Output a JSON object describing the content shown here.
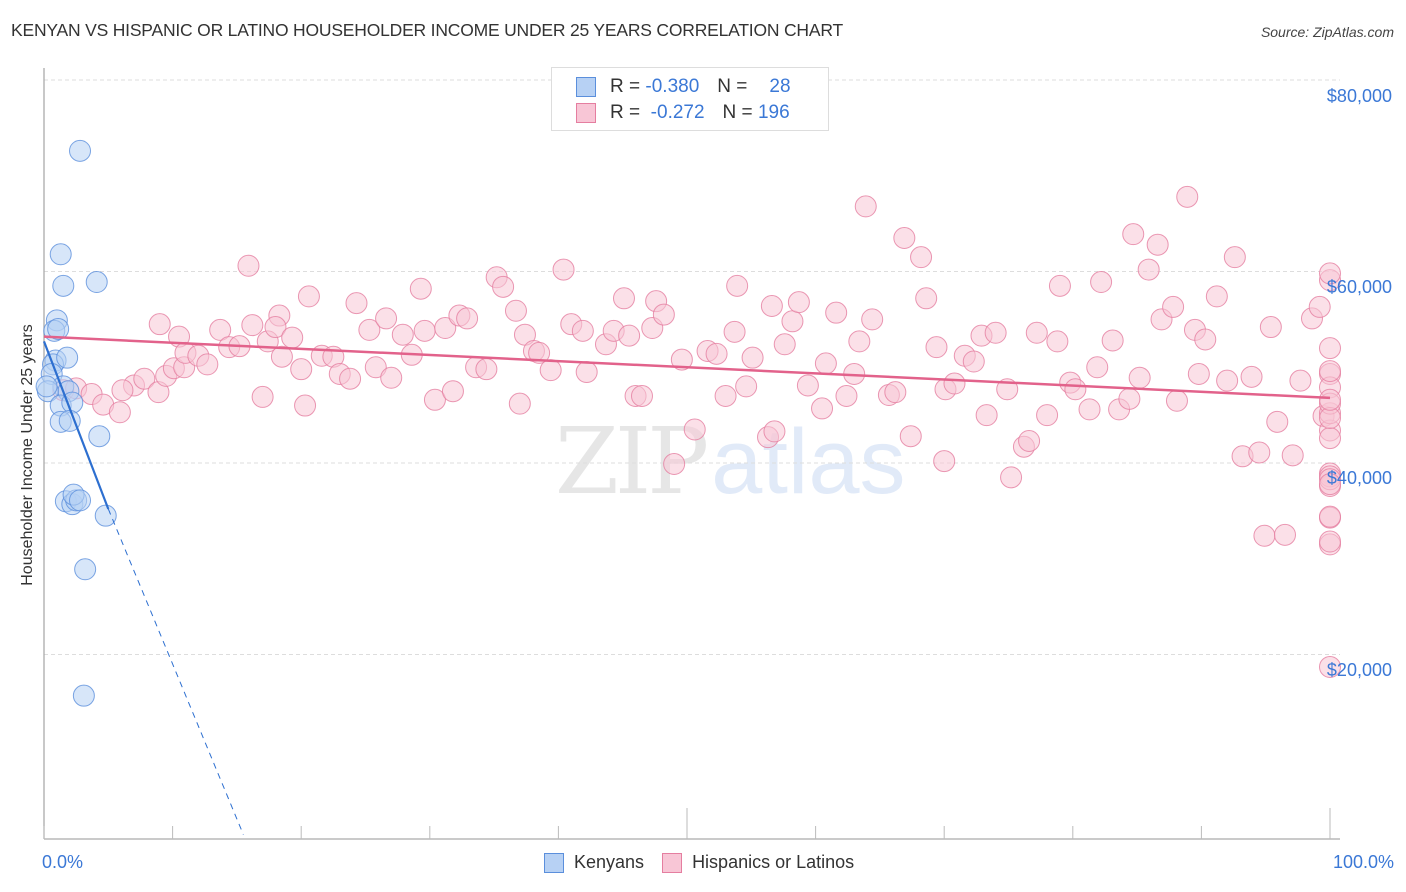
{
  "header": {
    "title": "KENYAN VS HISPANIC OR LATINO HOUSEHOLDER INCOME UNDER 25 YEARS CORRELATION CHART",
    "source": "Source: ZipAtlas.com"
  },
  "axes": {
    "ylabel": "Householder Income Under 25 years",
    "yticks": [
      "$80,000",
      "$60,000",
      "$40,000",
      "$20,000"
    ],
    "xticks": [
      "0.0%",
      "100.0%"
    ]
  },
  "legend_top": {
    "rows": [
      {
        "r_label": "R =",
        "r_value": "-0.380",
        "n_label": "N =",
        "n_value": "28"
      },
      {
        "r_label": "R =",
        "r_value": "-0.272",
        "n_label": "N =",
        "n_value": "196"
      }
    ]
  },
  "legend_bottom": {
    "items": [
      {
        "label": "Kenyans"
      },
      {
        "label": "Hispanics or Latinos"
      }
    ]
  },
  "watermark": {
    "zip": "ZIP",
    "atlas": "atlas"
  },
  "colors": {
    "kenyan_fill": "#b7d1f4",
    "kenyan_stroke": "#5b8fdc",
    "kenyan_line": "#2d6fd0",
    "hispanic_fill": "#f8c6d6",
    "hispanic_stroke": "#e57ea0",
    "hispanic_line": "#e2628b",
    "tick_label": "#3b78d6",
    "grid": "#dddddd"
  },
  "chart_data": {
    "type": "scatter",
    "title": "KENYAN VS HISPANIC OR LATINO HOUSEHOLDER INCOME UNDER 25 YEARS CORRELATION CHART",
    "xlabel": "",
    "ylabel": "Householder Income Under 25 years",
    "xlim": [
      0,
      100
    ],
    "ylim": [
      0,
      82000
    ],
    "x_unit": "%",
    "y_ticks": [
      20000,
      40000,
      60000,
      80000
    ],
    "grid": true,
    "legend_position": "top-center",
    "series": [
      {
        "name": "Kenyans",
        "R": -0.38,
        "N": 28,
        "trend": {
          "x0": 0.0,
          "y0": 52700,
          "x1": 5.0,
          "y1": 35200,
          "dashed_to": {
            "x": 15.5,
            "y": 1200
          }
        },
        "points": [
          [
            2.8,
            72600
          ],
          [
            1.3,
            61800
          ],
          [
            1.5,
            58500
          ],
          [
            4.1,
            58900
          ],
          [
            1.0,
            54900
          ],
          [
            0.8,
            53800
          ],
          [
            1.1,
            54000
          ],
          [
            0.9,
            50700
          ],
          [
            0.7,
            50300
          ],
          [
            1.8,
            51000
          ],
          [
            0.6,
            49300
          ],
          [
            1.5,
            48000
          ],
          [
            1.9,
            47500
          ],
          [
            0.3,
            47500
          ],
          [
            1.3,
            46000
          ],
          [
            2.2,
            46300
          ],
          [
            1.3,
            44300
          ],
          [
            2.0,
            44400
          ],
          [
            4.3,
            42800
          ],
          [
            1.7,
            36000
          ],
          [
            2.2,
            35700
          ],
          [
            2.5,
            36100
          ],
          [
            2.3,
            36700
          ],
          [
            2.8,
            36100
          ],
          [
            4.8,
            34500
          ],
          [
            3.2,
            28900
          ],
          [
            3.1,
            15700
          ],
          [
            0.2,
            48000
          ]
        ]
      },
      {
        "name": "Hispanics or Latinos",
        "R": -0.272,
        "N": 196,
        "trend": {
          "x0": 0.0,
          "y0": 53200,
          "x1": 100.0,
          "y1": 46800
        },
        "points": [
          [
            1.5,
            47600
          ],
          [
            2.5,
            47800
          ],
          [
            3.7,
            47200
          ],
          [
            4.6,
            46100
          ],
          [
            5.9,
            45300
          ],
          [
            7.0,
            48100
          ],
          [
            7.8,
            48800
          ],
          [
            6.1,
            47600
          ],
          [
            8.9,
            47400
          ],
          [
            9.5,
            49100
          ],
          [
            10.1,
            49900
          ],
          [
            10.9,
            50000
          ],
          [
            9.0,
            54500
          ],
          [
            10.5,
            53200
          ],
          [
            11.0,
            51500
          ],
          [
            12.0,
            51200
          ],
          [
            12.7,
            50300
          ],
          [
            13.7,
            53900
          ],
          [
            14.4,
            52100
          ],
          [
            15.2,
            52200
          ],
          [
            15.9,
            60600
          ],
          [
            16.2,
            54400
          ],
          [
            17.4,
            52700
          ],
          [
            18.3,
            55400
          ],
          [
            18.0,
            54200
          ],
          [
            17.0,
            46900
          ],
          [
            19.3,
            53100
          ],
          [
            18.5,
            51100
          ],
          [
            20.0,
            49800
          ],
          [
            20.6,
            57400
          ],
          [
            21.6,
            51200
          ],
          [
            20.3,
            46000
          ],
          [
            22.5,
            51100
          ],
          [
            23.0,
            49300
          ],
          [
            23.8,
            48800
          ],
          [
            24.3,
            56700
          ],
          [
            25.3,
            53900
          ],
          [
            25.8,
            50000
          ],
          [
            26.6,
            55100
          ],
          [
            27.0,
            48900
          ],
          [
            27.9,
            53400
          ],
          [
            28.6,
            51300
          ],
          [
            29.3,
            58200
          ],
          [
            29.6,
            53800
          ],
          [
            30.4,
            46600
          ],
          [
            31.2,
            54100
          ],
          [
            31.8,
            47500
          ],
          [
            32.3,
            55400
          ],
          [
            32.9,
            55100
          ],
          [
            33.6,
            50000
          ],
          [
            34.4,
            49800
          ],
          [
            35.2,
            59400
          ],
          [
            35.7,
            58400
          ],
          [
            36.7,
            55900
          ],
          [
            37.4,
            53400
          ],
          [
            37.0,
            46200
          ],
          [
            38.1,
            51700
          ],
          [
            38.5,
            51500
          ],
          [
            39.4,
            49700
          ],
          [
            40.4,
            60200
          ],
          [
            41.0,
            54500
          ],
          [
            41.9,
            53800
          ],
          [
            42.2,
            49500
          ],
          [
            43.7,
            52400
          ],
          [
            44.3,
            53800
          ],
          [
            45.1,
            57200
          ],
          [
            45.5,
            53300
          ],
          [
            46.0,
            47000
          ],
          [
            46.5,
            47000
          ],
          [
            47.3,
            54100
          ],
          [
            47.6,
            56900
          ],
          [
            48.2,
            55500
          ],
          [
            49.0,
            39900
          ],
          [
            49.6,
            50800
          ],
          [
            50.6,
            43500
          ],
          [
            51.6,
            51700
          ],
          [
            52.3,
            51400
          ],
          [
            53.0,
            47000
          ],
          [
            53.7,
            53700
          ],
          [
            53.9,
            58500
          ],
          [
            54.6,
            48000
          ],
          [
            55.1,
            51000
          ],
          [
            56.3,
            42700
          ],
          [
            56.8,
            43300
          ],
          [
            56.6,
            56400
          ],
          [
            57.6,
            52400
          ],
          [
            58.2,
            54800
          ],
          [
            58.7,
            56800
          ],
          [
            59.4,
            48100
          ],
          [
            60.5,
            45700
          ],
          [
            60.8,
            50400
          ],
          [
            61.6,
            55700
          ],
          [
            62.4,
            47000
          ],
          [
            63.0,
            49300
          ],
          [
            63.4,
            52700
          ],
          [
            63.9,
            66800
          ],
          [
            64.4,
            55000
          ],
          [
            65.7,
            47100
          ],
          [
            66.2,
            47400
          ],
          [
            66.9,
            63500
          ],
          [
            67.4,
            42800
          ],
          [
            68.2,
            61500
          ],
          [
            68.6,
            57200
          ],
          [
            69.4,
            52100
          ],
          [
            70.1,
            47700
          ],
          [
            70.8,
            48300
          ],
          [
            70.0,
            40200
          ],
          [
            71.6,
            51200
          ],
          [
            72.3,
            50600
          ],
          [
            72.9,
            53300
          ],
          [
            73.3,
            45000
          ],
          [
            74.0,
            53600
          ],
          [
            74.9,
            47700
          ],
          [
            75.2,
            38500
          ],
          [
            76.2,
            41700
          ],
          [
            76.6,
            42300
          ],
          [
            77.2,
            53600
          ],
          [
            78.0,
            45000
          ],
          [
            78.8,
            52700
          ],
          [
            79.0,
            58500
          ],
          [
            79.8,
            48400
          ],
          [
            80.2,
            47700
          ],
          [
            81.3,
            45600
          ],
          [
            81.9,
            50000
          ],
          [
            82.2,
            58900
          ],
          [
            83.1,
            52800
          ],
          [
            83.6,
            45600
          ],
          [
            84.4,
            46700
          ],
          [
            85.2,
            48900
          ],
          [
            84.7,
            63900
          ],
          [
            85.9,
            60200
          ],
          [
            86.6,
            62800
          ],
          [
            86.9,
            55000
          ],
          [
            87.8,
            56300
          ],
          [
            88.1,
            46500
          ],
          [
            88.9,
            67800
          ],
          [
            89.5,
            53900
          ],
          [
            90.3,
            52900
          ],
          [
            89.8,
            49300
          ],
          [
            91.2,
            57400
          ],
          [
            92.0,
            48600
          ],
          [
            92.6,
            61500
          ],
          [
            93.2,
            40700
          ],
          [
            93.9,
            49000
          ],
          [
            94.5,
            41100
          ],
          [
            94.9,
            32400
          ],
          [
            95.4,
            54200
          ],
          [
            95.9,
            44300
          ],
          [
            96.5,
            32500
          ],
          [
            97.1,
            40800
          ],
          [
            97.7,
            48600
          ],
          [
            98.6,
            55100
          ],
          [
            99.2,
            56300
          ],
          [
            99.5,
            44900
          ],
          [
            100.0,
            38900
          ],
          [
            100.0,
            37600
          ],
          [
            100.0,
            31500
          ],
          [
            100.0,
            43400
          ],
          [
            100.0,
            42600
          ],
          [
            100.0,
            49300
          ],
          [
            100.0,
            47900
          ],
          [
            100.0,
            52000
          ],
          [
            100.0,
            59100
          ],
          [
            100.0,
            59800
          ],
          [
            100.0,
            45200
          ],
          [
            100.0,
            38600
          ],
          [
            100.0,
            49600
          ],
          [
            100.0,
            46200
          ],
          [
            100.0,
            44700
          ],
          [
            100.0,
            46600
          ],
          [
            100.0,
            38300
          ],
          [
            100.0,
            37800
          ],
          [
            100.0,
            34300
          ],
          [
            100.0,
            34400
          ],
          [
            100.0,
            31800
          ],
          [
            100.0,
            18700
          ]
        ]
      }
    ]
  }
}
